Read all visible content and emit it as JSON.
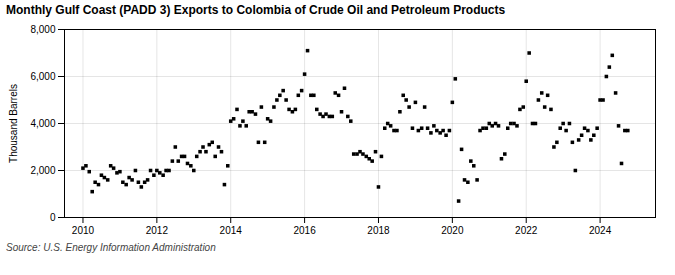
{
  "chart_data": {
    "type": "scatter",
    "title": "Monthly Gulf Coast (PADD 3) Exports to Colombia of Crude Oil and Petroleum Products",
    "ylabel": "Thousand Barrels",
    "source": "Source: U.S. Energy Information Administration",
    "marker": "square",
    "grid": true,
    "xlim": [
      2009.5,
      2025.5
    ],
    "xticks": [
      2010,
      2012,
      2014,
      2016,
      2018,
      2020,
      2022,
      2024
    ],
    "ylim": [
      0,
      8000
    ],
    "yticks": [
      0,
      {
        "value": 2000,
        "label": "2,000"
      },
      {
        "value": 4000,
        "label": "4,000"
      },
      {
        "value": 6000,
        "label": "6,000"
      },
      {
        "value": 8000,
        "label": "8,000"
      }
    ],
    "x": [
      2010.0,
      2010.08,
      2010.17,
      2010.25,
      2010.33,
      2010.42,
      2010.5,
      2010.58,
      2010.67,
      2010.75,
      2010.83,
      2010.92,
      2011.0,
      2011.08,
      2011.17,
      2011.25,
      2011.33,
      2011.42,
      2011.5,
      2011.58,
      2011.67,
      2011.75,
      2011.83,
      2011.92,
      2012.0,
      2012.08,
      2012.17,
      2012.25,
      2012.33,
      2012.42,
      2012.5,
      2012.58,
      2012.67,
      2012.75,
      2012.83,
      2012.92,
      2013.0,
      2013.08,
      2013.17,
      2013.25,
      2013.33,
      2013.42,
      2013.5,
      2013.58,
      2013.67,
      2013.75,
      2013.83,
      2013.92,
      2014.0,
      2014.08,
      2014.17,
      2014.25,
      2014.33,
      2014.42,
      2014.5,
      2014.58,
      2014.67,
      2014.75,
      2014.83,
      2014.92,
      2015.0,
      2015.08,
      2015.17,
      2015.25,
      2015.33,
      2015.42,
      2015.5,
      2015.58,
      2015.67,
      2015.75,
      2015.83,
      2015.92,
      2016.0,
      2016.08,
      2016.17,
      2016.25,
      2016.33,
      2016.42,
      2016.5,
      2016.58,
      2016.67,
      2016.75,
      2016.83,
      2016.92,
      2017.0,
      2017.08,
      2017.17,
      2017.25,
      2017.33,
      2017.42,
      2017.5,
      2017.58,
      2017.67,
      2017.75,
      2017.83,
      2017.92,
      2018.0,
      2018.08,
      2018.17,
      2018.25,
      2018.33,
      2018.42,
      2018.5,
      2018.58,
      2018.67,
      2018.75,
      2018.83,
      2018.92,
      2019.0,
      2019.08,
      2019.17,
      2019.25,
      2019.33,
      2019.42,
      2019.5,
      2019.58,
      2019.67,
      2019.75,
      2019.83,
      2019.92,
      2020.0,
      2020.08,
      2020.17,
      2020.25,
      2020.33,
      2020.42,
      2020.5,
      2020.58,
      2020.67,
      2020.75,
      2020.83,
      2020.92,
      2021.0,
      2021.08,
      2021.17,
      2021.25,
      2021.33,
      2021.42,
      2021.5,
      2021.58,
      2021.67,
      2021.75,
      2021.83,
      2021.92,
      2022.0,
      2022.08,
      2022.17,
      2022.25,
      2022.33,
      2022.42,
      2022.5,
      2022.58,
      2022.67,
      2022.75,
      2022.83,
      2022.92,
      2023.0,
      2023.08,
      2023.17,
      2023.25,
      2023.33,
      2023.42,
      2023.5,
      2023.58,
      2023.67,
      2023.75,
      2023.83,
      2023.92,
      2024.0,
      2024.08,
      2024.17,
      2024.25,
      2024.33,
      2024.42,
      2024.5,
      2024.58,
      2024.67,
      2024.75
    ],
    "values": [
      2100,
      2200,
      1950,
      1100,
      1500,
      1400,
      1800,
      1700,
      1600,
      2200,
      2100,
      1900,
      1950,
      1500,
      1400,
      1700,
      1600,
      2000,
      1500,
      1300,
      1500,
      1600,
      2000,
      1800,
      2000,
      1900,
      1800,
      2000,
      2000,
      2400,
      3000,
      2400,
      2600,
      2600,
      2300,
      2200,
      2000,
      2600,
      2800,
      3000,
      2800,
      3100,
      3200,
      2600,
      3000,
      2800,
      1400,
      2200,
      4100,
      4200,
      4600,
      3900,
      4100,
      3900,
      4500,
      4500,
      4400,
      3200,
      4700,
      3200,
      4200,
      4100,
      4700,
      5000,
      5200,
      5400,
      5000,
      4600,
      4500,
      4600,
      5200,
      5400,
      6100,
      7100,
      5200,
      5200,
      4600,
      4400,
      4300,
      4400,
      4300,
      4300,
      5300,
      5200,
      4500,
      5500,
      4300,
      4100,
      2700,
      2700,
      2800,
      2700,
      2600,
      2500,
      2400,
      2800,
      1300,
      2600,
      3800,
      4000,
      3900,
      3700,
      3700,
      4500,
      5200,
      5000,
      4700,
      3800,
      4900,
      3700,
      3800,
      4700,
      3800,
      3600,
      3900,
      3700,
      3600,
      3700,
      3500,
      3700,
      4900,
      5900,
      700,
      2900,
      1600,
      1500,
      2400,
      2200,
      1600,
      3700,
      3800,
      3800,
      4000,
      3900,
      4000,
      3900,
      2500,
      2700,
      3800,
      4000,
      4000,
      3900,
      4600,
      4700,
      5800,
      7000,
      4000,
      4000,
      5000,
      5300,
      4700,
      5200,
      4600,
      3000,
      3200,
      3800,
      4000,
      3700,
      4000,
      3200,
      2000,
      3300,
      3500,
      3800,
      3700,
      3300,
      3500,
      3800,
      5000,
      5000,
      6000,
      6400,
      6900,
      5300,
      3900,
      2300,
      3700,
      3700
    ]
  }
}
